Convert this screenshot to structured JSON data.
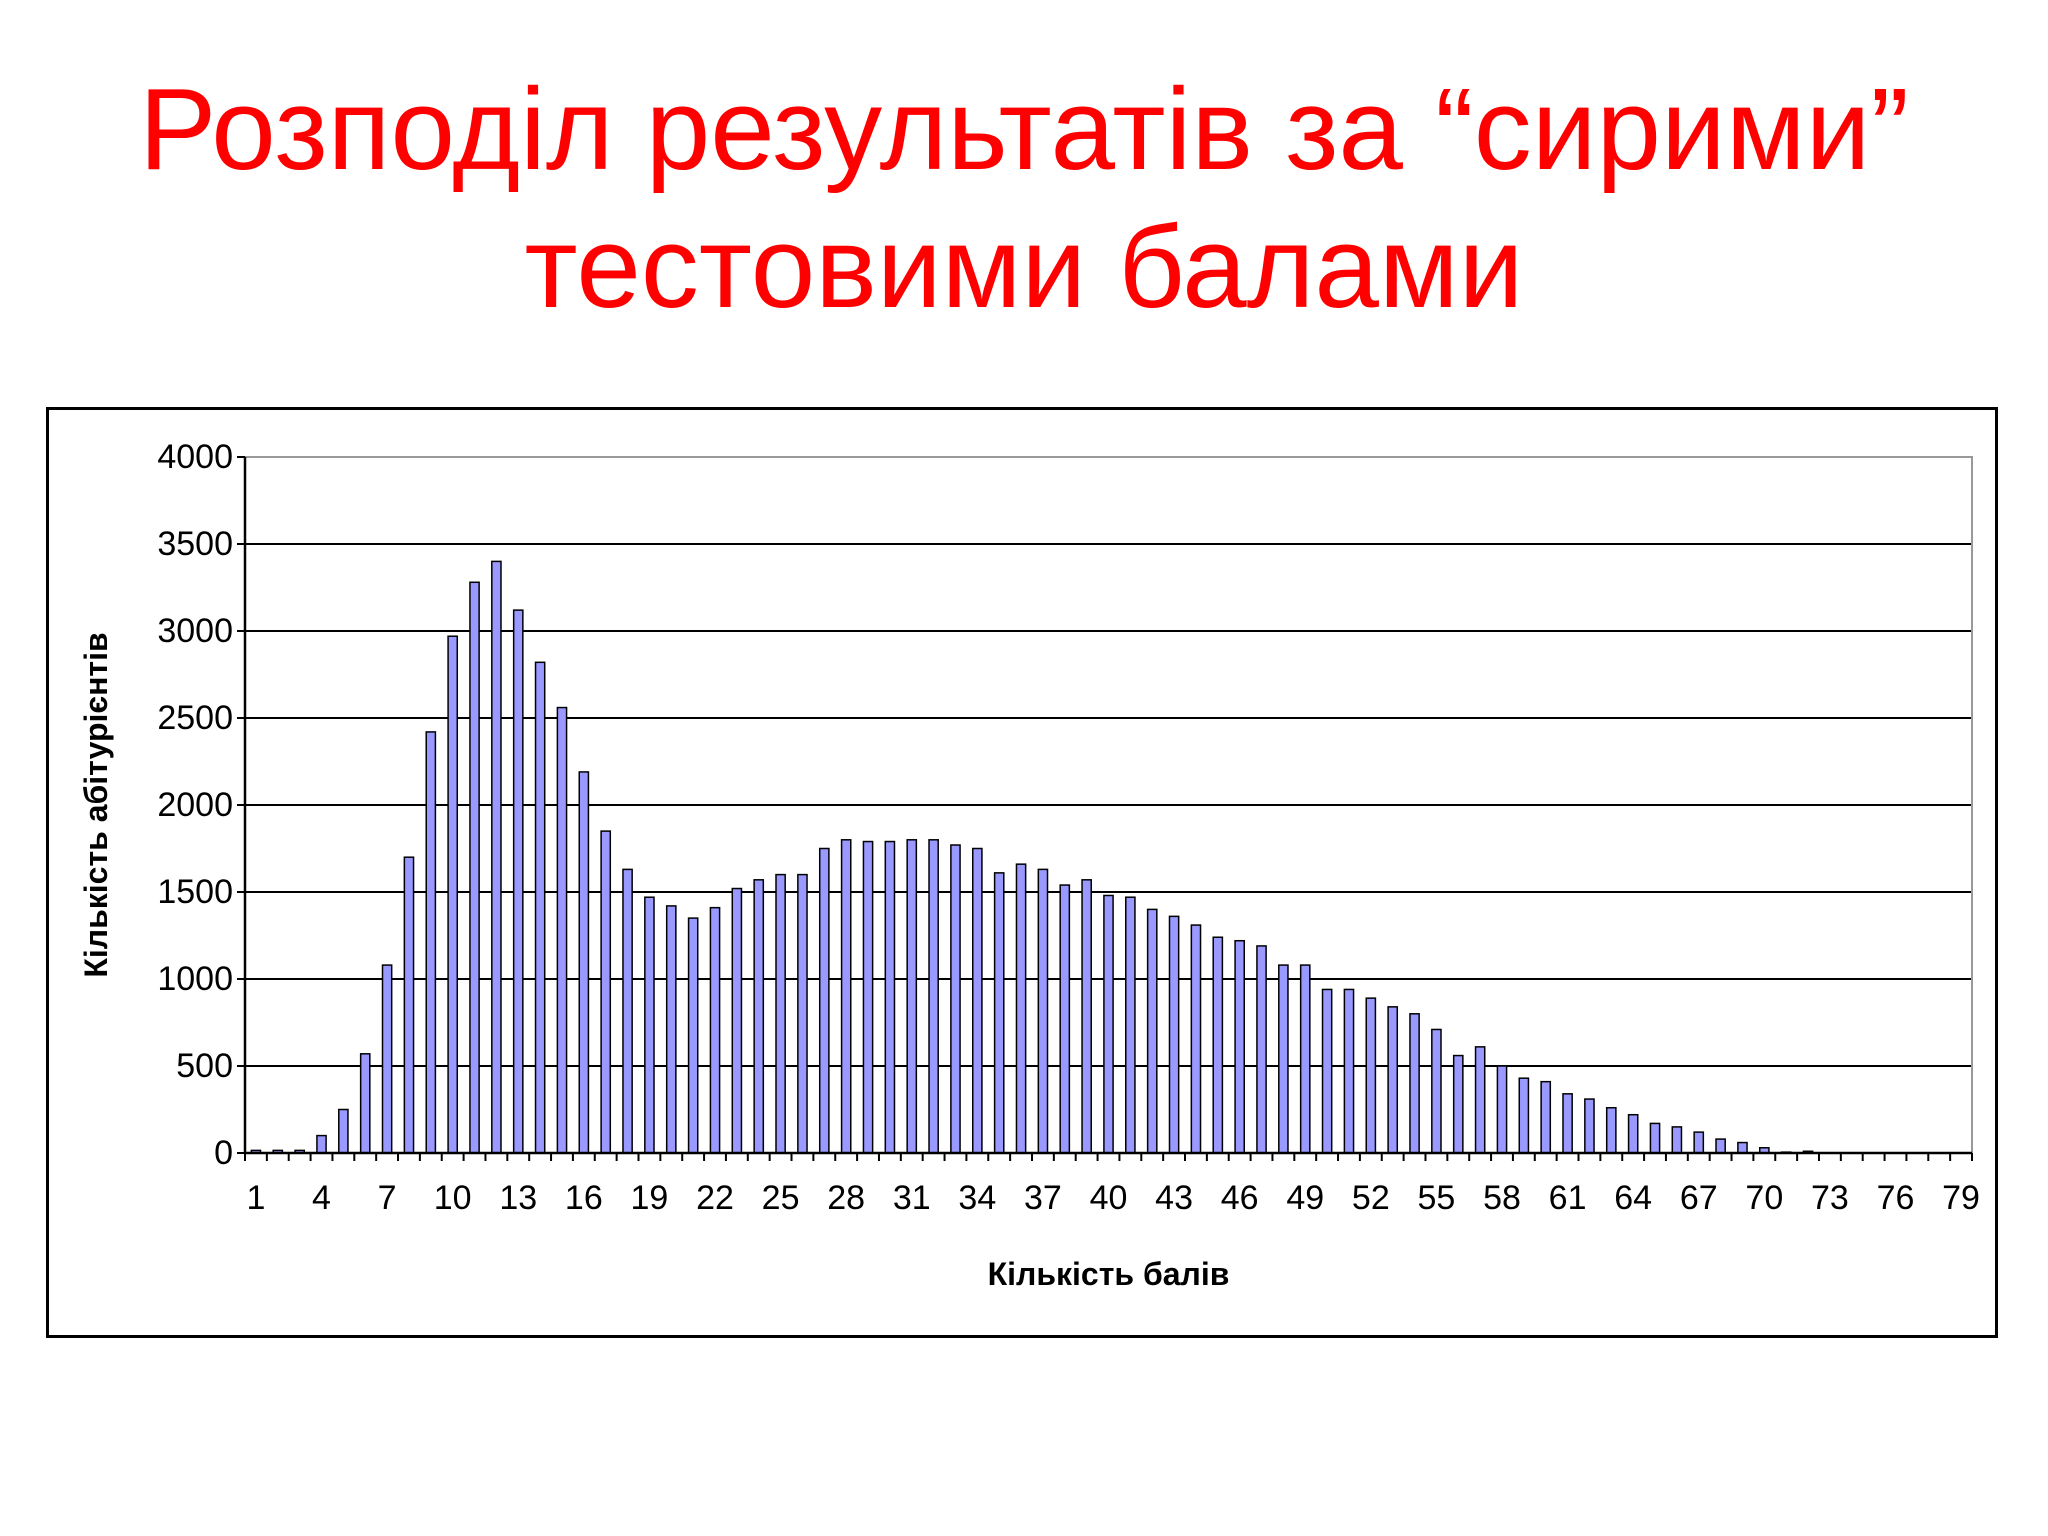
{
  "slide": {
    "title_line1": "Розподіл результатів за “сирими”",
    "title_line2": "тестовими балами"
  },
  "chart_data": {
    "type": "bar",
    "xlabel": "Кількість балів",
    "ylabel": "Кількість абітурієнтів",
    "ylim": [
      0,
      4000
    ],
    "yticks": [
      0,
      500,
      1000,
      1500,
      2000,
      2500,
      3000,
      3500,
      4000
    ],
    "xtick_labels": [
      "1",
      "4",
      "7",
      "10",
      "13",
      "16",
      "19",
      "22",
      "25",
      "28",
      "31",
      "34",
      "37",
      "40",
      "43",
      "46",
      "49",
      "52",
      "55",
      "58",
      "61",
      "64",
      "67",
      "70",
      "73",
      "76",
      "79"
    ],
    "grid": true,
    "bar_color": "#9999ff",
    "bar_edge_color": "#000000",
    "categories": [
      1,
      2,
      3,
      4,
      5,
      6,
      7,
      8,
      9,
      10,
      11,
      12,
      13,
      14,
      15,
      16,
      17,
      18,
      19,
      20,
      21,
      22,
      23,
      24,
      25,
      26,
      27,
      28,
      29,
      30,
      31,
      32,
      33,
      34,
      35,
      36,
      37,
      38,
      39,
      40,
      41,
      42,
      43,
      44,
      45,
      46,
      47,
      48,
      49,
      50,
      51,
      52,
      53,
      54,
      55,
      56,
      57,
      58,
      59,
      60,
      61,
      62,
      63,
      64,
      65,
      66,
      67,
      68,
      69,
      70,
      71,
      72,
      73,
      74,
      75,
      76,
      77,
      78,
      79
    ],
    "values": [
      15,
      15,
      15,
      100,
      250,
      570,
      1080,
      1700,
      2420,
      2970,
      3280,
      3400,
      3120,
      2820,
      2560,
      2190,
      1850,
      1630,
      1470,
      1420,
      1350,
      1410,
      1520,
      1570,
      1600,
      1600,
      1750,
      1800,
      1790,
      1790,
      1800,
      1800,
      1770,
      1750,
      1610,
      1660,
      1630,
      1540,
      1570,
      1480,
      1470,
      1400,
      1360,
      1310,
      1240,
      1220,
      1190,
      1080,
      1080,
      940,
      940,
      890,
      840,
      800,
      710,
      560,
      610,
      500,
      430,
      410,
      340,
      310,
      260,
      220,
      170,
      150,
      120,
      80,
      60,
      30,
      5,
      10,
      0,
      0,
      0,
      0,
      0,
      0,
      0
    ]
  }
}
